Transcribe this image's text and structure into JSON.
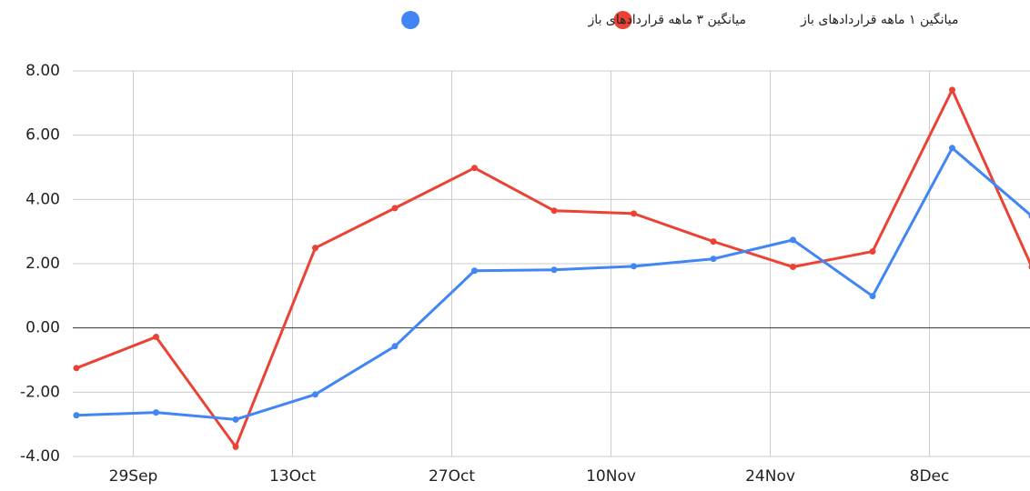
{
  "chart_data": {
    "type": "line",
    "x": [
      "24Sep",
      "1Oct",
      "8Oct",
      "15Oct",
      "22Oct",
      "29Oct",
      "5Nov",
      "12Nov",
      "19Nov",
      "26Nov",
      "3Dec",
      "10Dec",
      "17Dec"
    ],
    "series": [
      {
        "name": "میانگین ۱ ماهه قراردادهای باز",
        "color": "#ea4335",
        "values": [
          -1.25,
          -0.28,
          -3.7,
          2.49,
          3.73,
          4.98,
          3.65,
          3.56,
          2.69,
          1.9,
          2.38,
          7.41,
          1.9
        ]
      },
      {
        "name": "میانگین ۳ ماهه قراردادهای باز",
        "color": "#4285f4",
        "values": [
          -2.72,
          -2.63,
          -2.85,
          -2.07,
          -0.57,
          1.78,
          1.81,
          1.92,
          2.15,
          2.74,
          0.99,
          5.6,
          3.48
        ]
      }
    ],
    "xlim": [
      "24Sep",
      "17Dec"
    ],
    "xticks": [
      "29Sep",
      "13Oct",
      "27Oct",
      "10Nov",
      "24Nov",
      "8Dec"
    ],
    "ylim": [
      -4,
      8
    ],
    "yticks": [
      {
        "value": -4,
        "label": "-4.00"
      },
      {
        "value": -2,
        "label": "-2.00"
      },
      {
        "value": 0,
        "label": "0.00"
      },
      {
        "value": 2,
        "label": "2.00"
      },
      {
        "value": 4,
        "label": "4.00"
      },
      {
        "value": 6,
        "label": "6.00"
      },
      {
        "value": 8,
        "label": "8.00"
      }
    ],
    "grid": true,
    "legend": "top"
  }
}
